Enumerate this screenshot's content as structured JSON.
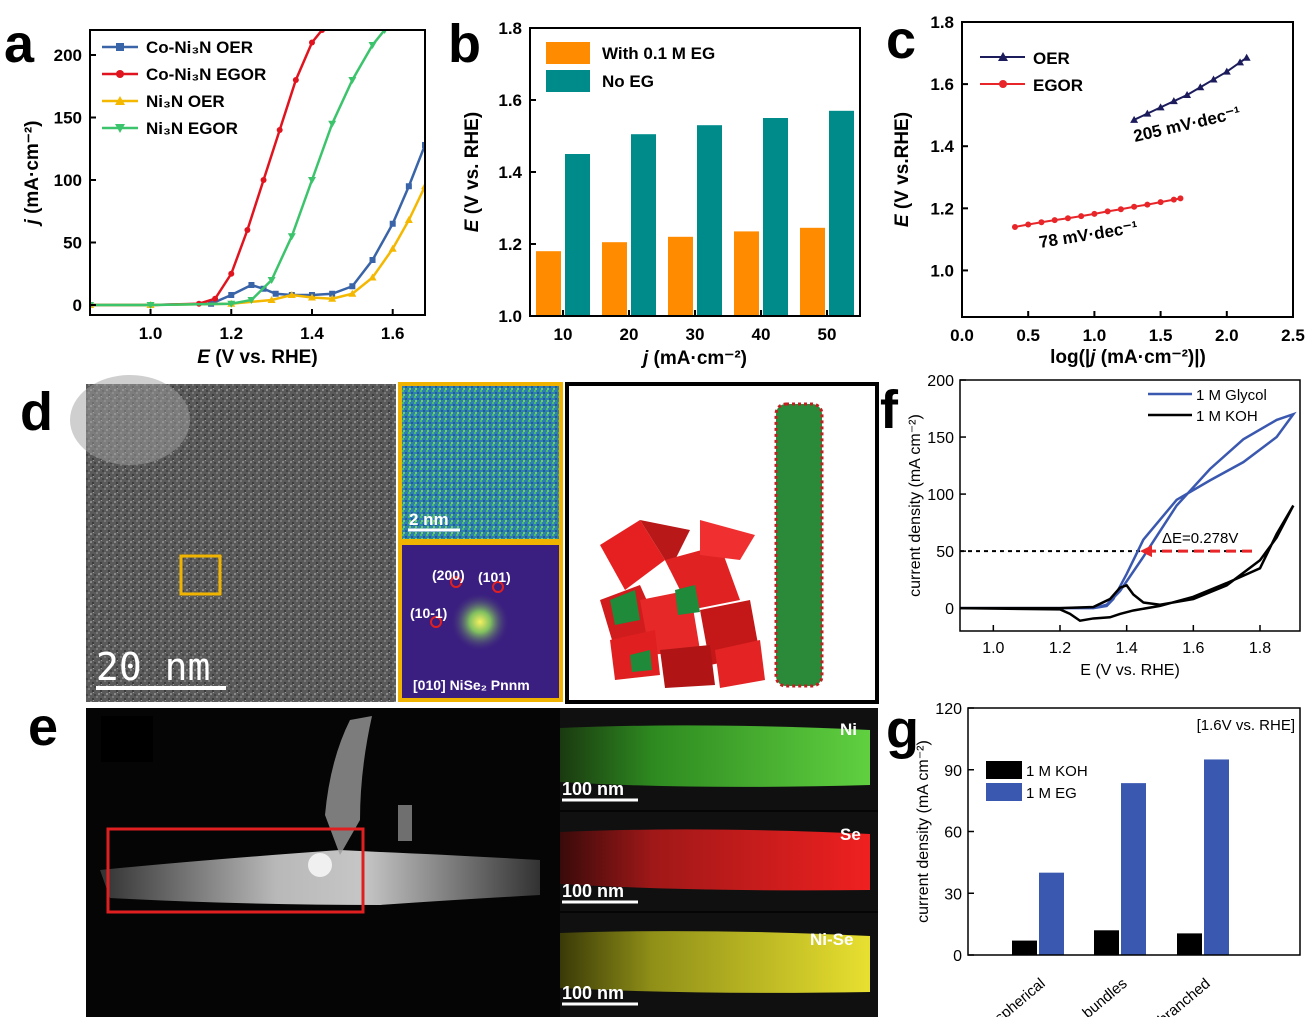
{
  "colors": {
    "co_oer": "#3a64a8",
    "co_egor": "#e0141e",
    "ni_oer": "#f5b800",
    "ni_egor": "#3cc46c",
    "orange": "#ff8c00",
    "teal": "#008b8b",
    "navy": "#1c1c5c",
    "red": "#e8262a",
    "blue": "#3a58b0",
    "black": "#000000",
    "gold": "#f0b400"
  },
  "panels": {
    "a": {
      "letter": "a"
    },
    "b": {
      "letter": "b"
    },
    "c": {
      "letter": "c"
    },
    "d": {
      "letter": "d"
    },
    "e": {
      "letter": "e"
    },
    "f": {
      "letter": "f"
    },
    "g": {
      "letter": "g"
    }
  },
  "images": {
    "d": {
      "scale_main": "20 nm",
      "scale_inset": "2 nm",
      "saed_spots": [
        "(200)",
        "(101)",
        "(10-1)"
      ],
      "saed_caption": "[010] NiSe₂ Pnnm"
    },
    "e": {
      "maps": [
        {
          "label": "Ni",
          "scale": "100 nm"
        },
        {
          "label": "Se",
          "scale": "100 nm"
        },
        {
          "label": "Ni-Se",
          "scale": "100 nm"
        }
      ]
    }
  },
  "chart_data": [
    {
      "panel": "a",
      "type": "line",
      "xlabel_italic": "E",
      "xlabel_rest": " (V vs. RHE)",
      "ylabel_italic": "j",
      "ylabel_rest": " (mA·cm⁻²)",
      "xlim": [
        0.85,
        1.68
      ],
      "ylim": [
        -8,
        220
      ],
      "xticks": [
        "1.0",
        "1.2",
        "1.4",
        "1.6"
      ],
      "yticks": [
        "0",
        "50",
        "100",
        "150",
        "200"
      ],
      "legend_position": "top-left",
      "series": [
        {
          "name": "Co-Ni₃N OER",
          "color_key": "co_oer",
          "marker": "square",
          "x": [
            0.85,
            1.0,
            1.15,
            1.2,
            1.25,
            1.28,
            1.31,
            1.35,
            1.4,
            1.45,
            1.5,
            1.55,
            1.6,
            1.64,
            1.68
          ],
          "y": [
            0,
            0,
            1,
            8,
            16,
            13,
            9,
            8,
            8,
            9,
            15,
            36,
            65,
            95,
            128
          ]
        },
        {
          "name": "Co-Ni₃N EGOR",
          "color_key": "co_egor",
          "marker": "circle",
          "x": [
            0.85,
            1.0,
            1.12,
            1.16,
            1.2,
            1.24,
            1.28,
            1.32,
            1.36,
            1.4,
            1.425
          ],
          "y": [
            0,
            0,
            1,
            5,
            25,
            60,
            100,
            140,
            180,
            210,
            220
          ]
        },
        {
          "name": "Ni₃N OER",
          "color_key": "ni_oer",
          "marker": "triangle-up",
          "x": [
            0.85,
            1.0,
            1.2,
            1.3,
            1.35,
            1.4,
            1.45,
            1.5,
            1.55,
            1.6,
            1.64,
            1.68
          ],
          "y": [
            0,
            0,
            1,
            4,
            8,
            6,
            5,
            9,
            22,
            45,
            68,
            95
          ]
        },
        {
          "name": "Ni₃N EGOR",
          "color_key": "ni_egor",
          "marker": "triangle-down",
          "x": [
            0.85,
            1.0,
            1.2,
            1.25,
            1.3,
            1.35,
            1.4,
            1.45,
            1.5,
            1.55,
            1.58
          ],
          "y": [
            0,
            0,
            1,
            4,
            20,
            55,
            100,
            145,
            180,
            208,
            220
          ]
        }
      ]
    },
    {
      "panel": "b",
      "type": "bar",
      "xlabel_italic": "j",
      "xlabel_rest": " (mA·cm⁻²)",
      "ylabel_italic": "E",
      "ylabel_rest": " (V vs. RHE)",
      "categories": [
        "10",
        "20",
        "30",
        "40",
        "50"
      ],
      "ylim": [
        1.0,
        1.8
      ],
      "yticks": [
        "1.0",
        "1.2",
        "1.4",
        "1.6",
        "1.8"
      ],
      "legend_position": "top-left",
      "series": [
        {
          "name": "With 0.1 M EG",
          "color_key": "orange",
          "values": [
            1.18,
            1.205,
            1.22,
            1.235,
            1.245
          ]
        },
        {
          "name": "No EG",
          "color_key": "teal",
          "values": [
            1.45,
            1.505,
            1.53,
            1.55,
            1.57
          ]
        }
      ]
    },
    {
      "panel": "c",
      "type": "line",
      "xlabel_pre": "log(|",
      "xlabel_italic": "j",
      "xlabel_rest": " (mA·cm⁻²)|)",
      "ylabel_italic": "E",
      "ylabel_rest": " (V vs.RHE)",
      "xlim": [
        0.0,
        2.5
      ],
      "ylim": [
        0.85,
        1.8
      ],
      "xticks": [
        "0.0",
        "0.5",
        "1.0",
        "1.5",
        "2.0",
        "2.5"
      ],
      "yticks": [
        "1.0",
        "1.2",
        "1.4",
        "1.6",
        "1.8"
      ],
      "legend_position": "top-left",
      "series": [
        {
          "name": "OER",
          "color_key": "navy",
          "marker": "triangle-up",
          "x": [
            1.3,
            1.4,
            1.5,
            1.6,
            1.7,
            1.8,
            1.9,
            2.0,
            2.1,
            2.15
          ],
          "y": [
            1.485,
            1.505,
            1.525,
            1.545,
            1.565,
            1.59,
            1.615,
            1.64,
            1.67,
            1.685
          ],
          "annotation": "205 mV·dec⁻¹"
        },
        {
          "name": "EGOR",
          "color_key": "red",
          "marker": "circle",
          "x": [
            0.4,
            0.5,
            0.6,
            0.7,
            0.8,
            0.9,
            1.0,
            1.1,
            1.2,
            1.3,
            1.4,
            1.5,
            1.6,
            1.65
          ],
          "y": [
            1.14,
            1.148,
            1.155,
            1.162,
            1.168,
            1.175,
            1.182,
            1.19,
            1.197,
            1.205,
            1.212,
            1.22,
            1.228,
            1.232
          ],
          "annotation": "78 mV·dec⁻¹"
        }
      ]
    },
    {
      "panel": "f",
      "type": "line",
      "xlabel": "E (V vs. RHE)",
      "ylabel": "current density (mA cm⁻²)",
      "xlim": [
        0.9,
        1.92
      ],
      "ylim": [
        -20,
        200
      ],
      "xticks": [
        "1.0",
        "1.2",
        "1.4",
        "1.6",
        "1.8"
      ],
      "yticks": [
        "0",
        "50",
        "100",
        "150",
        "200"
      ],
      "legend_position": "top-right",
      "reference_line_y": 50,
      "annotation": "ΔE=0.278V",
      "series": [
        {
          "name": "1 M Glycol",
          "color_key": "blue",
          "x": [
            0.9,
            1.2,
            1.3,
            1.34,
            1.38,
            1.45,
            1.55,
            1.65,
            1.75,
            1.85,
            1.9,
            1.85,
            1.75,
            1.65,
            1.55,
            1.45,
            1.4,
            1.36,
            1.34,
            1.3,
            1.2,
            0.9
          ],
          "y": [
            0,
            0,
            0,
            3,
            15,
            45,
            90,
            122,
            148,
            165,
            170,
            150,
            128,
            112,
            95,
            60,
            30,
            8,
            2,
            0,
            0,
            0
          ]
        },
        {
          "name": "1 M KOH",
          "color_key": "black",
          "x": [
            0.9,
            1.2,
            1.3,
            1.35,
            1.38,
            1.4,
            1.42,
            1.45,
            1.5,
            1.6,
            1.7,
            1.8,
            1.85,
            1.9,
            1.85,
            1.8,
            1.7,
            1.6,
            1.5,
            1.42,
            1.38,
            1.35,
            1.3,
            1.26,
            1.23,
            1.2,
            0.9
          ],
          "y": [
            0,
            0,
            1,
            8,
            18,
            20,
            12,
            5,
            3,
            8,
            20,
            42,
            62,
            90,
            65,
            35,
            22,
            10,
            2,
            -2,
            -5,
            -8,
            -9,
            -11,
            -5,
            -1,
            0
          ]
        }
      ]
    },
    {
      "panel": "g",
      "type": "bar",
      "xlabel": "",
      "ylabel": "current density (mA cm⁻²)",
      "note": "[1.6V vs. RHE]",
      "categories": [
        "spherical",
        "bundles",
        "branched"
      ],
      "ylim": [
        0,
        120
      ],
      "yticks": [
        "0",
        "30",
        "60",
        "90",
        "120"
      ],
      "legend_position": "top-left",
      "series": [
        {
          "name": "1 M KOH",
          "color_key": "black",
          "values": [
            7,
            12,
            10.5
          ]
        },
        {
          "name": "1 M EG",
          "color_key": "blue",
          "values": [
            40,
            83.5,
            95
          ]
        }
      ]
    }
  ]
}
